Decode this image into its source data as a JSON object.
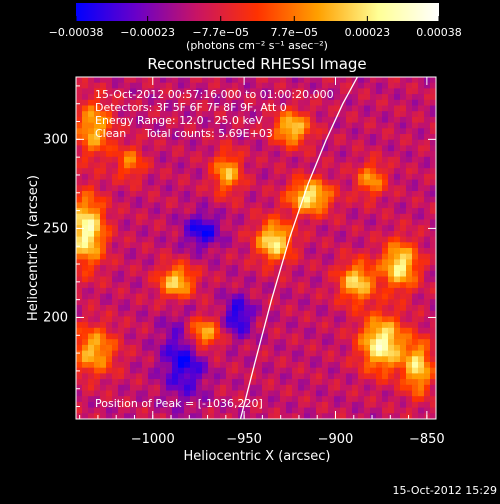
{
  "colorbar": {
    "tick_labels": [
      "−0.00038",
      "−0.00023",
      "−7.7e−05",
      "7.7e−05",
      "0.00023",
      "0.00038"
    ],
    "tick_values": [
      -0.00038,
      -0.00023,
      -7.7e-05,
      7.7e-05,
      0.00023,
      0.00038
    ],
    "range": [
      -0.00038,
      0.00038
    ],
    "unit_label": "(photons cm⁻² s⁻¹ asec⁻²)",
    "palette": [
      "#0000ff",
      "#6a00c8",
      "#c81464",
      "#ff3200",
      "#ffa000",
      "#ffff96",
      "#ffffff"
    ]
  },
  "chart_data": {
    "type": "heatmap",
    "title": "Reconstructed RHESSI Image",
    "xlabel": "Heliocentric X (arcsec)",
    "ylabel": "Heliocentric Y (arcsec)",
    "xlim": [
      -1042,
      -845
    ],
    "ylim": [
      143,
      335
    ],
    "x_ticks": [
      -1000,
      -950,
      -900,
      -850
    ],
    "x_tick_labels": [
      "−1000",
      "−950",
      "−900",
      "−850"
    ],
    "y_ticks": [
      200,
      250,
      300
    ],
    "y_tick_labels": [
      "200",
      "250",
      "300"
    ],
    "limb_curve": {
      "x": [
        -952,
        -944,
        -935,
        -925,
        -915,
        -905,
        -896,
        -888
      ],
      "y": [
        143,
        175,
        210,
        245,
        275,
        300,
        320,
        335
      ]
    },
    "peak": {
      "x": -1036,
      "y": 220
    },
    "annotations": {
      "time_range": "15-Oct-2012 00:57:16.000 to 01:00:20.000",
      "detectors": "Detectors: 3F 5F 6F 7F 8F 9F, Att 0",
      "energy": "Energy Range: 12.0 - 25.0 keV",
      "method": "Clean",
      "counts": "Total counts: 5.69E+03",
      "peak_text": "Position of Peak = [-1036,220]"
    },
    "footer_timestamp": "15-Oct-2012 15:29"
  }
}
